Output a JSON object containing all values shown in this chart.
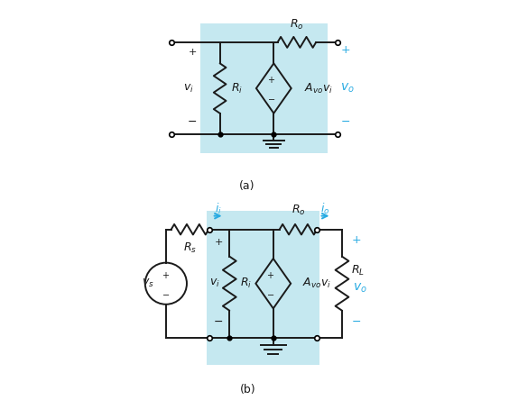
{
  "bg_color": "#ffffff",
  "box_color": "#c5e8f0",
  "line_color": "#1a1a1a",
  "cyan_color": "#29abe2",
  "fig_width": 5.64,
  "fig_height": 4.44,
  "label_a": "(a)",
  "label_b": "(b)"
}
